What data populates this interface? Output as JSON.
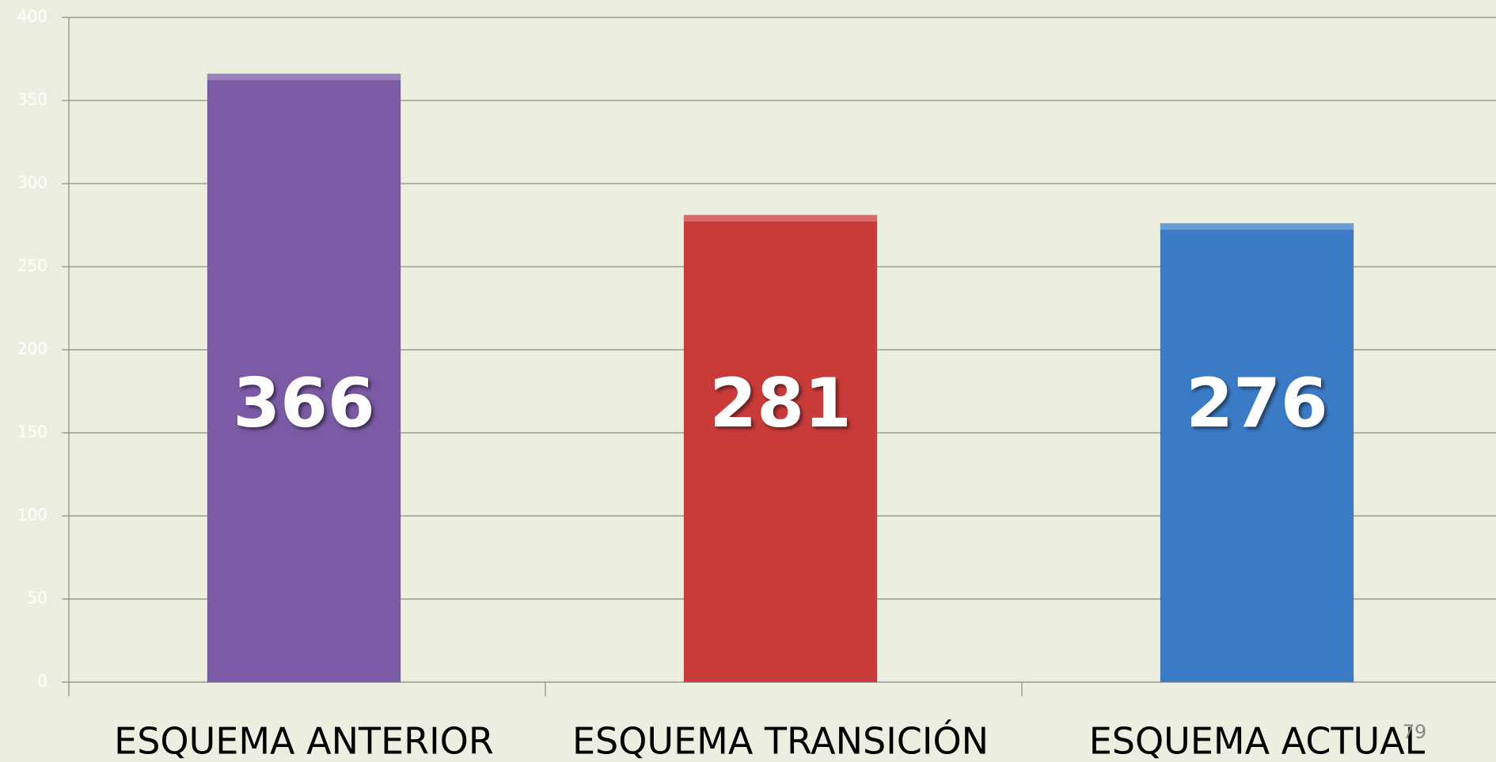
{
  "chart_data": {
    "type": "bar",
    "categories": [
      "ESQUEMA ANTERIOR",
      "ESQUEMA TRANSICIÓN",
      "ESQUEMA ACTUAL"
    ],
    "values": [
      366,
      281,
      276
    ],
    "colors": [
      "#7b5aa6",
      "#c83b39",
      "#3b7bc6"
    ],
    "ylim": [
      0,
      400
    ],
    "yticks": [
      0,
      50,
      100,
      150,
      200,
      250,
      300,
      350,
      400
    ],
    "grid": true
  },
  "page_number": "79"
}
